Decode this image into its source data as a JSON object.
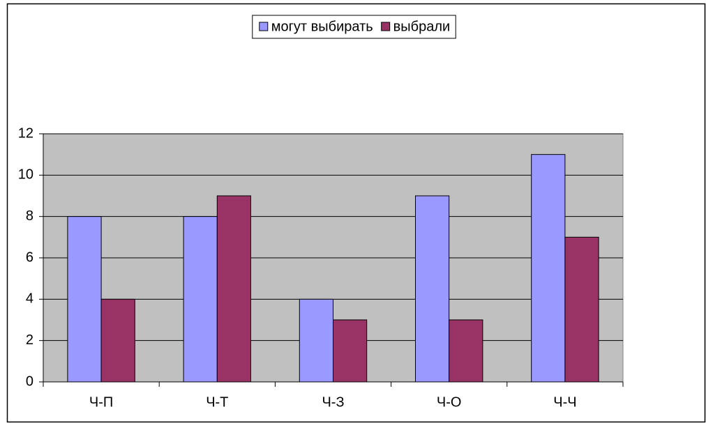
{
  "chart_data": {
    "type": "bar",
    "categories": [
      "Ч-П",
      "Ч-Т",
      "Ч-З",
      "Ч-О",
      "Ч-Ч"
    ],
    "series": [
      {
        "name": "могут выбирать",
        "color": "#9999ff",
        "values": [
          8,
          8,
          4,
          9,
          11
        ]
      },
      {
        "name": "выбрали",
        "color": "#993366",
        "values": [
          4,
          9,
          3,
          3,
          7
        ]
      }
    ],
    "ylim": [
      0,
      12
    ],
    "yticks": [
      0,
      2,
      4,
      6,
      8,
      10,
      12
    ],
    "grid": true,
    "legend": "top"
  }
}
